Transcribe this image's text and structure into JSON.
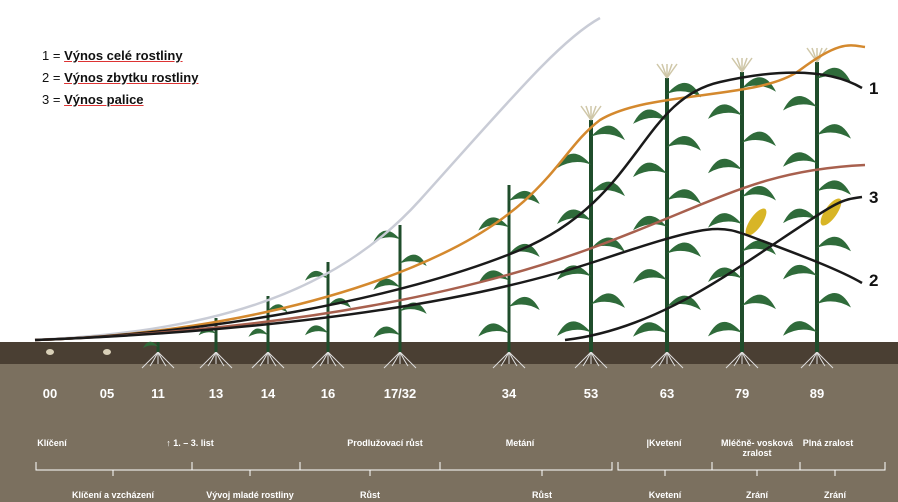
{
  "legend": [
    {
      "key": "1 =",
      "label": "Výnos celé rostliny"
    },
    {
      "key": "2 =",
      "label": "Výnos zbytku rostliny"
    },
    {
      "key": "3 =",
      "label": "Výnos palice"
    }
  ],
  "curve_labels": [
    "1",
    "3",
    "2"
  ],
  "stages": {
    "codes": [
      "00",
      "05",
      "11",
      "13",
      "14",
      "16",
      "17/32",
      "34",
      "53",
      "63",
      "79",
      "89"
    ],
    "names": [
      "Klíčení",
      "↑ 1. – 3. list",
      "Prodlužovací růst",
      "Metání",
      "|Kvetení",
      "Mléčně- vosková zralost",
      "Plná zralost"
    ]
  },
  "phases": [
    "Klíčení a vzcházení",
    "Vývoj mladé rostliny",
    "Růst",
    "Růst",
    "Kvetení",
    "Zrání",
    "Zrání"
  ]
}
